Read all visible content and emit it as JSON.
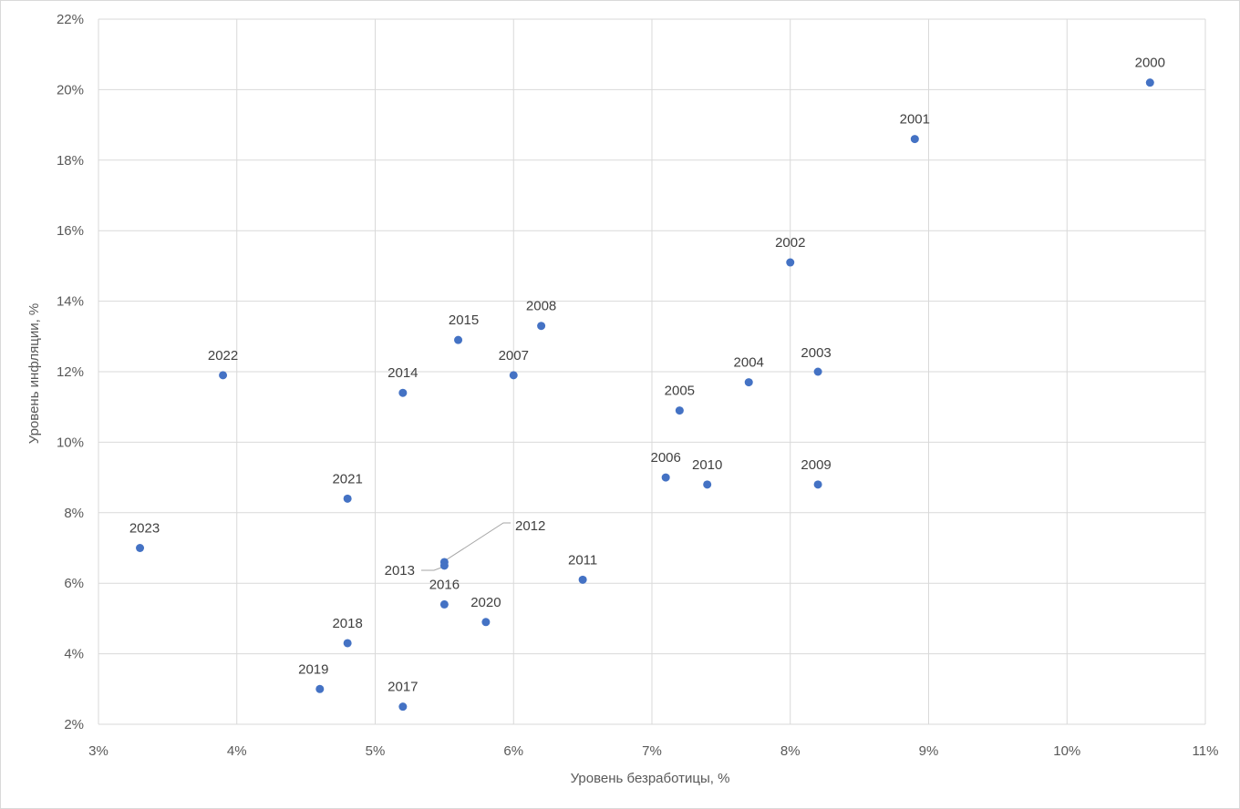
{
  "chart_data": {
    "type": "scatter",
    "xlabel": "Уровень безработицы, %",
    "ylabel": "Уровень инфляции, %",
    "xlim": [
      3,
      11
    ],
    "ylim": [
      2,
      22
    ],
    "x_ticks": [
      "3%",
      "4%",
      "5%",
      "6%",
      "7%",
      "8%",
      "9%",
      "10%",
      "11%"
    ],
    "y_ticks": [
      "2%",
      "4%",
      "6%",
      "8%",
      "10%",
      "12%",
      "14%",
      "16%",
      "18%",
      "20%",
      "22%"
    ],
    "grid": true,
    "marker_color": "#4472c4",
    "points": [
      {
        "label": "2000",
        "x": 10.6,
        "y": 20.2
      },
      {
        "label": "2001",
        "x": 8.9,
        "y": 18.6
      },
      {
        "label": "2002",
        "x": 8.0,
        "y": 15.1
      },
      {
        "label": "2003",
        "x": 8.2,
        "y": 12.0
      },
      {
        "label": "2004",
        "x": 7.7,
        "y": 11.7
      },
      {
        "label": "2005",
        "x": 7.2,
        "y": 10.9
      },
      {
        "label": "2006",
        "x": 7.1,
        "y": 9.0
      },
      {
        "label": "2007",
        "x": 6.0,
        "y": 11.9
      },
      {
        "label": "2008",
        "x": 6.2,
        "y": 13.3
      },
      {
        "label": "2009",
        "x": 8.2,
        "y": 8.8
      },
      {
        "label": "2010",
        "x": 7.4,
        "y": 8.8
      },
      {
        "label": "2011",
        "x": 6.5,
        "y": 6.1
      },
      {
        "label": "2012",
        "x": 5.5,
        "y": 6.6
      },
      {
        "label": "2013",
        "x": 5.5,
        "y": 6.5
      },
      {
        "label": "2014",
        "x": 5.2,
        "y": 11.4
      },
      {
        "label": "2015",
        "x": 5.6,
        "y": 12.9
      },
      {
        "label": "2016",
        "x": 5.5,
        "y": 5.4
      },
      {
        "label": "2017",
        "x": 5.2,
        "y": 2.5
      },
      {
        "label": "2018",
        "x": 4.8,
        "y": 4.3
      },
      {
        "label": "2019",
        "x": 4.6,
        "y": 3.0
      },
      {
        "label": "2020",
        "x": 5.8,
        "y": 4.9
      },
      {
        "label": "2021",
        "x": 4.8,
        "y": 8.4
      },
      {
        "label": "2022",
        "x": 3.9,
        "y": 11.9
      },
      {
        "label": "2023",
        "x": 3.3,
        "y": 7.0
      }
    ]
  }
}
